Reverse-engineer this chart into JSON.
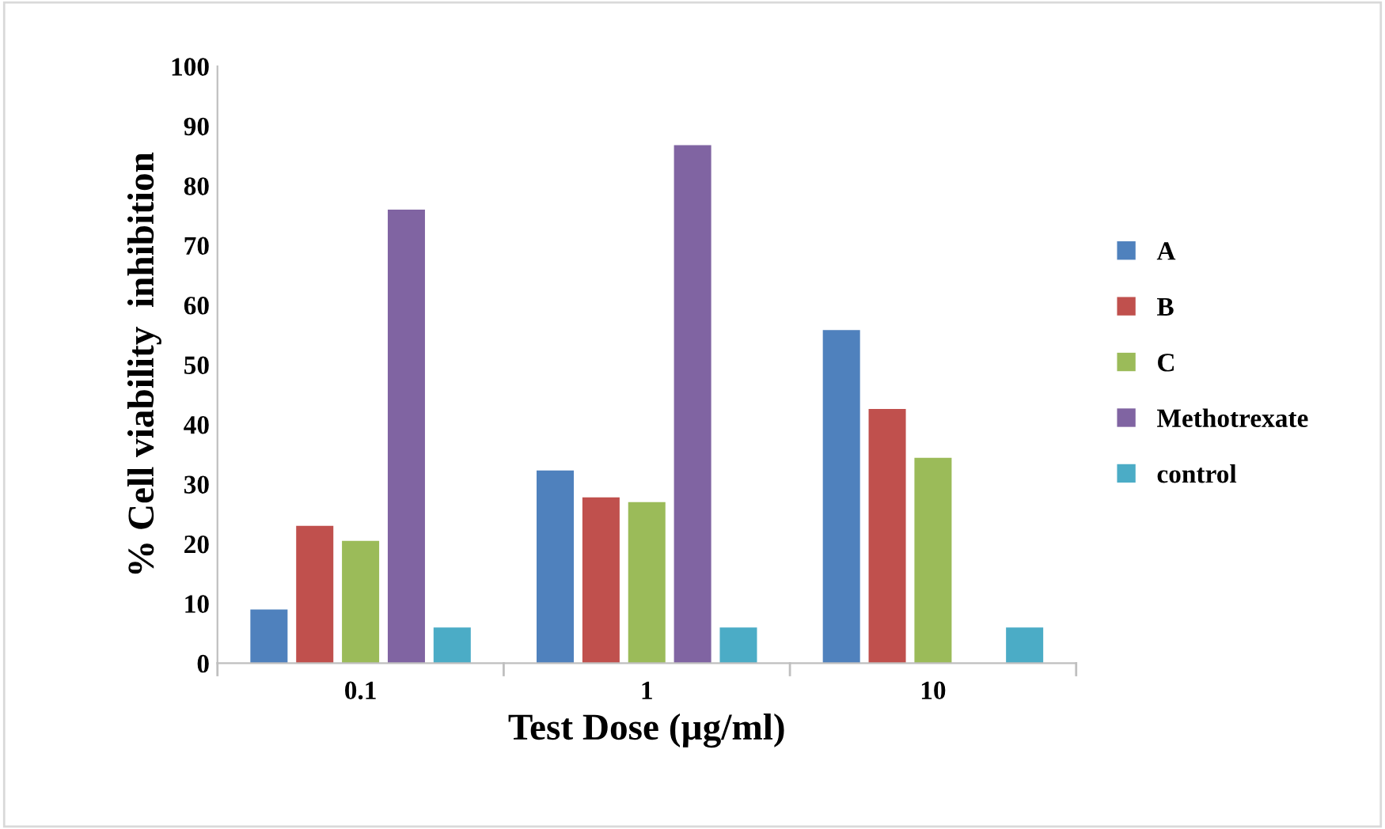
{
  "chart_data": {
    "type": "bar",
    "xlabel": "Test Dose (µg/ml)",
    "ylabel": "% Cell viability  inhibition",
    "categories": [
      "0.1",
      "1",
      "10"
    ],
    "series": [
      {
        "name": "A",
        "color": "#4f81bd",
        "values": [
          9,
          32.3,
          55.8
        ]
      },
      {
        "name": "B",
        "color": "#c0504d",
        "values": [
          23,
          27.8,
          42.6
        ]
      },
      {
        "name": "C",
        "color": "#9bbb59",
        "values": [
          20.5,
          27,
          34.4
        ]
      },
      {
        "name": "Methotrexate",
        "color": "#8064a2",
        "values": [
          76,
          86.8,
          null
        ]
      },
      {
        "name": "control",
        "color": "#4bacc6",
        "values": [
          6,
          6,
          6
        ]
      }
    ],
    "ylim": [
      0,
      100
    ],
    "yticks": [
      0,
      10,
      20,
      30,
      40,
      50,
      60,
      70,
      80,
      90,
      100
    ],
    "grid": false,
    "legend": "right"
  }
}
